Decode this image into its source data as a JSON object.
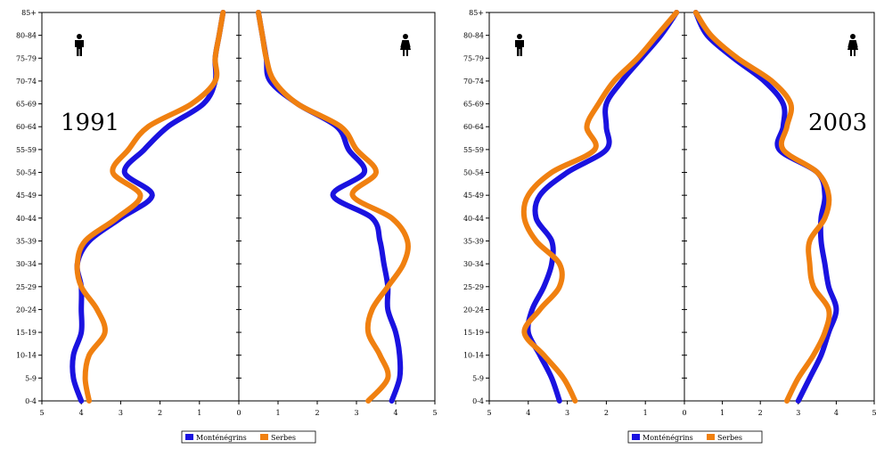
{
  "chart_data": [
    {
      "type": "line",
      "title": "1991",
      "categories": [
        "0-4",
        "5-9",
        "10-14",
        "15-19",
        "20-24",
        "25-29",
        "30-34",
        "35-39",
        "40-44",
        "45-49",
        "50-54",
        "55-59",
        "60-64",
        "65-69",
        "70-74",
        "75-79",
        "80-84",
        "85+"
      ],
      "xlim": [
        0,
        5
      ],
      "x_ticks": [
        "5",
        "4",
        "3",
        "2",
        "1",
        "0",
        "1",
        "2",
        "3",
        "4",
        "5"
      ],
      "series": [
        {
          "name": "Monténégrins",
          "color": "#1a12e0",
          "male": [
            4.0,
            4.2,
            4.2,
            4.0,
            4.0,
            4.0,
            4.1,
            3.8,
            3.0,
            2.2,
            2.9,
            2.4,
            1.8,
            0.9,
            0.6,
            0.6,
            0.5,
            0.4
          ],
          "female": [
            3.9,
            4.1,
            4.1,
            4.0,
            3.8,
            3.8,
            3.7,
            3.6,
            3.4,
            2.4,
            3.2,
            2.8,
            2.5,
            1.5,
            0.8,
            0.7,
            0.6,
            0.5
          ]
        },
        {
          "name": "Serbes",
          "color": "#f08010",
          "male": [
            3.8,
            3.9,
            3.8,
            3.4,
            3.6,
            4.0,
            4.1,
            3.9,
            3.1,
            2.5,
            3.2,
            2.8,
            2.3,
            1.2,
            0.6,
            0.6,
            0.5,
            0.4
          ],
          "female": [
            3.3,
            3.8,
            3.6,
            3.3,
            3.4,
            3.8,
            4.2,
            4.3,
            3.9,
            2.9,
            3.5,
            3.0,
            2.6,
            1.5,
            0.9,
            0.7,
            0.6,
            0.5
          ]
        }
      ],
      "icons": [
        "male-symbol",
        "female-symbol"
      ]
    },
    {
      "type": "line",
      "title": "2003",
      "categories": [
        "0-4",
        "5-9",
        "10-14",
        "15-19",
        "20-24",
        "25-29",
        "30-34",
        "35-39",
        "40-44",
        "45-49",
        "50-54",
        "55-59",
        "60-64",
        "65-69",
        "70-74",
        "75-79",
        "80-84",
        "85+"
      ],
      "xlim": [
        0,
        5
      ],
      "x_ticks": [
        "5",
        "4",
        "3",
        "2",
        "1",
        "0",
        "1",
        "2",
        "3",
        "4",
        "5"
      ],
      "series": [
        {
          "name": "Monténégrins",
          "color": "#1a12e0",
          "male": [
            3.2,
            3.4,
            3.7,
            4.0,
            3.9,
            3.6,
            3.4,
            3.4,
            3.8,
            3.7,
            3.0,
            2.0,
            2.0,
            2.0,
            1.6,
            1.1,
            0.6,
            0.2
          ],
          "female": [
            3.0,
            3.3,
            3.6,
            3.8,
            4.0,
            3.8,
            3.7,
            3.6,
            3.6,
            3.7,
            3.5,
            2.5,
            2.6,
            2.6,
            2.1,
            1.3,
            0.6,
            0.3
          ]
        },
        {
          "name": "Serbes",
          "color": "#f08010",
          "male": [
            2.8,
            3.1,
            3.6,
            4.1,
            3.7,
            3.2,
            3.2,
            3.8,
            4.1,
            4.0,
            3.4,
            2.3,
            2.5,
            2.2,
            1.8,
            1.2,
            0.7,
            0.2
          ],
          "female": [
            2.7,
            3.0,
            3.4,
            3.7,
            3.8,
            3.4,
            3.3,
            3.3,
            3.7,
            3.8,
            3.5,
            2.6,
            2.7,
            2.8,
            2.3,
            1.4,
            0.7,
            0.3
          ]
        }
      ],
      "icons": [
        "male-symbol",
        "female-symbol"
      ]
    }
  ],
  "legend": {
    "items": [
      "Monténégrins",
      "Serbes"
    ]
  }
}
